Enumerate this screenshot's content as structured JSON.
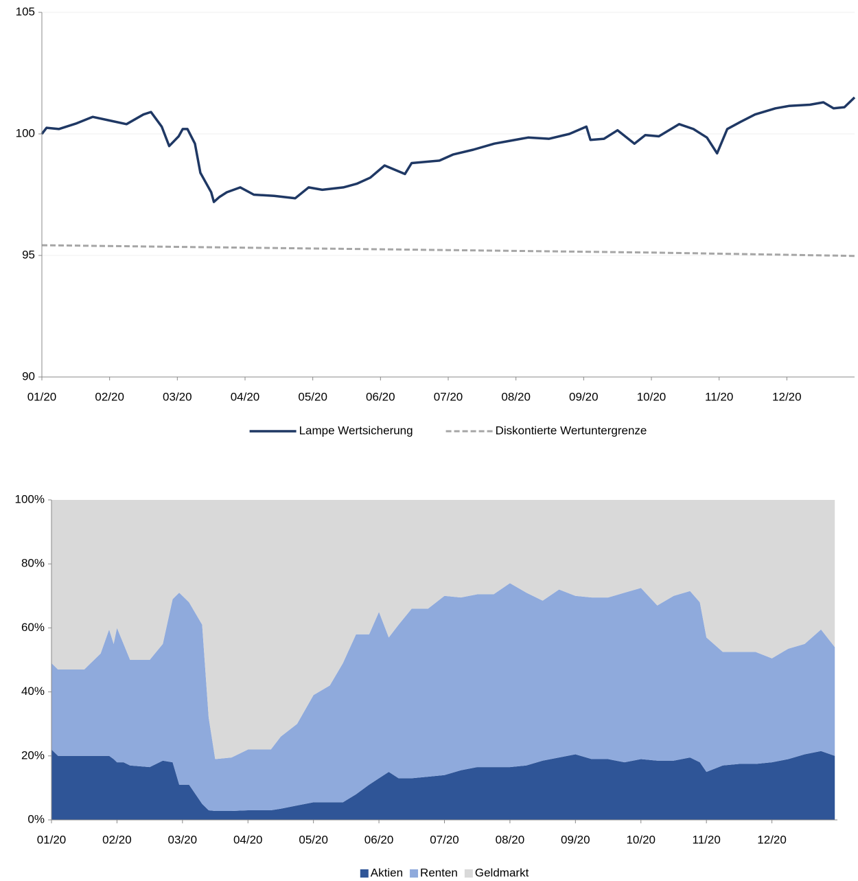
{
  "chart_data": [
    {
      "type": "line",
      "xlim": [
        0,
        12
      ],
      "ylim": [
        90,
        105
      ],
      "yticks": [
        90,
        95,
        100,
        105
      ],
      "grid": true,
      "legend": "bottom",
      "xticks": [
        {
          "value": 0,
          "label": "01/20"
        },
        {
          "value": 1,
          "label": "02/20"
        },
        {
          "value": 2,
          "label": "03/20"
        },
        {
          "value": 3,
          "label": "04/20"
        },
        {
          "value": 4,
          "label": "05/20"
        },
        {
          "value": 5,
          "label": "06/20"
        },
        {
          "value": 6,
          "label": "07/20"
        },
        {
          "value": 7,
          "label": "08/20"
        },
        {
          "value": 8,
          "label": "09/20"
        },
        {
          "value": 9,
          "label": "10/20"
        },
        {
          "value": 10,
          "label": "11/20"
        },
        {
          "value": 11,
          "label": "12/20"
        }
      ],
      "series": [
        {
          "name": "Lampe Wertsicherung",
          "color": "#1f3864",
          "line_style": "solid",
          "x": [
            0,
            0.07,
            0.25,
            0.5,
            0.75,
            1.0,
            1.25,
            1.5,
            1.61,
            1.77,
            1.88,
            2.02,
            2.08,
            2.15,
            2.26,
            2.34,
            2.42,
            2.5,
            2.54,
            2.62,
            2.73,
            2.93,
            3.13,
            3.43,
            3.74,
            3.94,
            4.14,
            4.45,
            4.65,
            4.85,
            5.06,
            5.36,
            5.46,
            5.87,
            6.07,
            6.37,
            6.68,
            6.88,
            7.18,
            7.49,
            7.79,
            8.04,
            8.1,
            8.3,
            8.5,
            8.75,
            8.91,
            9.11,
            9.41,
            9.62,
            9.82,
            9.97,
            10.12,
            10.32,
            10.53,
            10.83,
            11.03,
            11.34,
            11.54,
            11.69,
            11.85,
            12.0
          ],
          "values": [
            100.0,
            100.25,
            100.2,
            100.42,
            100.7,
            100.55,
            100.4,
            100.8,
            100.9,
            100.3,
            99.5,
            99.9,
            100.2,
            100.2,
            99.6,
            98.4,
            98.0,
            97.6,
            97.2,
            97.4,
            97.6,
            97.8,
            97.5,
            97.45,
            97.35,
            97.8,
            97.7,
            97.8,
            97.95,
            98.2,
            98.7,
            98.35,
            98.8,
            98.9,
            99.15,
            99.35,
            99.6,
            99.7,
            99.85,
            99.8,
            100.0,
            100.3,
            99.75,
            99.8,
            100.15,
            99.6,
            99.95,
            99.9,
            100.4,
            100.2,
            99.85,
            99.2,
            100.2,
            100.5,
            100.8,
            101.05,
            101.15,
            101.2,
            101.3,
            101.05,
            101.1,
            101.5
          ]
        },
        {
          "name": "Diskontierte Wertuntergrenze",
          "color": "#a6a6a6",
          "line_style": "dashed",
          "x": [
            0,
            3,
            6,
            9,
            12
          ],
          "values": [
            95.42,
            95.32,
            95.22,
            95.12,
            94.98
          ]
        }
      ]
    },
    {
      "type": "area",
      "stacked": true,
      "xlim": [
        0,
        12
      ],
      "ylim": [
        0,
        100
      ],
      "legend": "bottom",
      "yticks": [
        {
          "value": 0,
          "label": "0%"
        },
        {
          "value": 20,
          "label": "20%"
        },
        {
          "value": 40,
          "label": "40%"
        },
        {
          "value": 60,
          "label": "60%"
        },
        {
          "value": 80,
          "label": "80%"
        },
        {
          "value": 100,
          "label": "100%"
        }
      ],
      "xticks": [
        {
          "value": 0,
          "label": "01/20"
        },
        {
          "value": 1,
          "label": "02/20"
        },
        {
          "value": 2,
          "label": "03/20"
        },
        {
          "value": 3,
          "label": "04/20"
        },
        {
          "value": 4,
          "label": "05/20"
        },
        {
          "value": 5,
          "label": "06/20"
        },
        {
          "value": 6,
          "label": "07/20"
        },
        {
          "value": 7,
          "label": "08/20"
        },
        {
          "value": 8,
          "label": "09/20"
        },
        {
          "value": 9,
          "label": "10/20"
        },
        {
          "value": 10,
          "label": "11/20"
        },
        {
          "value": 11,
          "label": "12/20"
        }
      ],
      "x": [
        0,
        0.1,
        0.5,
        0.75,
        0.88,
        0.95,
        1.0,
        1.1,
        1.2,
        1.5,
        1.7,
        1.85,
        1.95,
        2.1,
        2.3,
        2.4,
        2.5,
        2.75,
        3.0,
        3.35,
        3.5,
        3.75,
        4.0,
        4.25,
        4.45,
        4.65,
        4.85,
        5.0,
        5.15,
        5.3,
        5.5,
        5.75,
        6.0,
        6.25,
        6.5,
        6.75,
        7.0,
        7.25,
        7.5,
        7.75,
        8.0,
        8.25,
        8.5,
        8.75,
        9.0,
        9.25,
        9.5,
        9.75,
        9.9,
        10.0,
        10.25,
        10.5,
        10.75,
        11.0,
        11.25,
        11.5,
        11.75,
        11.96
      ],
      "series": [
        {
          "name": "Aktien",
          "color": "#2f5597",
          "values": [
            22,
            20,
            20,
            20,
            20,
            19,
            18,
            18,
            17,
            16.5,
            18.5,
            18,
            11,
            11,
            5,
            3,
            2.8,
            2.8,
            3,
            3,
            3.5,
            4.5,
            5.5,
            5.5,
            5.5,
            8,
            11,
            13,
            15,
            13,
            13,
            13.5,
            14,
            15.5,
            16.5,
            16.5,
            16.5,
            17,
            18.5,
            19.5,
            20.5,
            19,
            19,
            18,
            19,
            18.5,
            18.5,
            19.5,
            18,
            15,
            17,
            17.5,
            17.5,
            18,
            19,
            20.5,
            21.5,
            20
          ]
        },
        {
          "name": "Renten",
          "color": "#8faadc",
          "values": [
            27,
            27,
            27,
            32,
            39.5,
            36,
            42,
            37,
            33,
            33.5,
            36.5,
            51,
            60,
            57,
            56,
            29,
            16.2,
            16.7,
            19,
            19,
            22.5,
            25.5,
            33.5,
            36.5,
            43.5,
            50,
            47,
            52,
            42,
            48,
            53,
            52.5,
            56,
            54,
            54,
            54,
            57.5,
            54,
            50,
            52.5,
            49.5,
            50.5,
            50.5,
            53,
            53.5,
            48.5,
            51.5,
            52,
            50,
            42,
            35.5,
            35,
            35,
            32.5,
            34.5,
            34.5,
            38,
            34
          ]
        },
        {
          "name": "Geldmarkt",
          "color": "#d9d9d9",
          "values": [
            51,
            53,
            53,
            48,
            40.5,
            45,
            40,
            45,
            50,
            50,
            45,
            31,
            29,
            32,
            39,
            68,
            81,
            80.5,
            78,
            78,
            74,
            70,
            61,
            58,
            51,
            42,
            42,
            35,
            43,
            39,
            34,
            34,
            30,
            30.5,
            29.5,
            29.5,
            26,
            29,
            31.5,
            28,
            30,
            30.5,
            30.5,
            29,
            27.5,
            33,
            30,
            28.5,
            32,
            43,
            47.5,
            47.5,
            47.5,
            49.5,
            46.5,
            45,
            40.5,
            46
          ]
        }
      ]
    }
  ]
}
